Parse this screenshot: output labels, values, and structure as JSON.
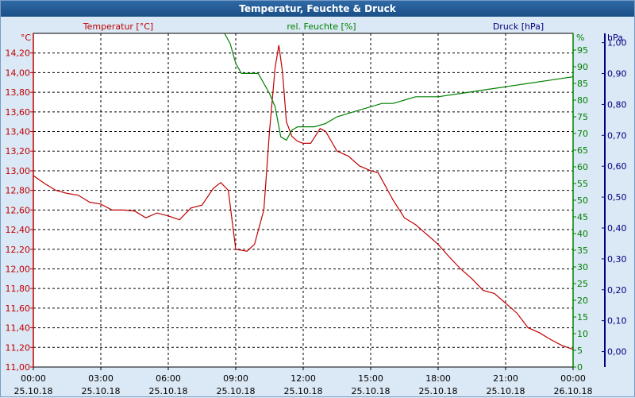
{
  "window": {
    "title": "Temperatur, Feuchte & Druck"
  },
  "chart_data": {
    "type": "line",
    "title": "Temperatur, Feuchte & Druck",
    "grid": true,
    "colors": {
      "temperature": "#c00000",
      "humidity": "#008000",
      "pressure": "#000080"
    },
    "x": {
      "range": [
        "25.10.18 00:00",
        "26.10.18 00:00"
      ],
      "ticks": [
        {
          "time": "00:00",
          "date": "25.10.18"
        },
        {
          "time": "03:00",
          "date": "25.10.18"
        },
        {
          "time": "06:00",
          "date": "25.10.18"
        },
        {
          "time": "09:00",
          "date": "25.10.18"
        },
        {
          "time": "12:00",
          "date": "25.10.18"
        },
        {
          "time": "15:00",
          "date": "25.10.18"
        },
        {
          "time": "18:00",
          "date": "25.10.18"
        },
        {
          "time": "21:00",
          "date": "25.10.18"
        },
        {
          "time": "00:00",
          "date": "26.10.18"
        }
      ]
    },
    "axes": {
      "temperature": {
        "label": "Temperatur [°C]",
        "unit": "°C",
        "ylim": [
          11.0,
          14.4
        ],
        "ticks": [
          "11,00",
          "11,20",
          "11,40",
          "11,60",
          "11,80",
          "12,00",
          "12,20",
          "12,40",
          "12,60",
          "12,80",
          "13,00",
          "13,20",
          "13,40",
          "13,60",
          "13,80",
          "14,00",
          "14,20"
        ]
      },
      "humidity": {
        "label": "rel. Feuchte [%]",
        "unit": "%",
        "ylim": [
          0,
          100
        ],
        "ticks": [
          "0",
          "5",
          "10",
          "15",
          "20",
          "25",
          "30",
          "35",
          "40",
          "45",
          "50",
          "55",
          "60",
          "65",
          "70",
          "75",
          "80",
          "85",
          "90",
          "95"
        ]
      },
      "pressure": {
        "label": "Druck [hPa]",
        "unit": "hPa",
        "ylim": [
          -0.05,
          1.03
        ],
        "ticks": [
          "0,00",
          "0,10",
          "0,20",
          "0,30",
          "0,40",
          "0,50",
          "0,60",
          "0,70",
          "0,80",
          "0,90",
          "1,00"
        ]
      }
    },
    "series": [
      {
        "name": "Temperatur [°C]",
        "color": "#c00000",
        "axis": "temperature",
        "points": [
          [
            "25.10.18 00:00",
            12.95
          ],
          [
            "25.10.18 00:30",
            12.87
          ],
          [
            "25.10.18 01:00",
            12.8
          ],
          [
            "25.10.18 01:30",
            12.77
          ],
          [
            "25.10.18 02:00",
            12.75
          ],
          [
            "25.10.18 02:30",
            12.68
          ],
          [
            "25.10.18 03:00",
            12.66
          ],
          [
            "25.10.18 03:30",
            12.6
          ],
          [
            "25.10.18 04:00",
            12.6
          ],
          [
            "25.10.18 04:30",
            12.59
          ],
          [
            "25.10.18 05:00",
            12.52
          ],
          [
            "25.10.18 05:30",
            12.57
          ],
          [
            "25.10.18 06:00",
            12.54
          ],
          [
            "25.10.18 06:30",
            12.5
          ],
          [
            "25.10.18 07:00",
            12.62
          ],
          [
            "25.10.18 07:30",
            12.65
          ],
          [
            "25.10.18 08:00",
            12.82
          ],
          [
            "25.10.18 08:20",
            12.88
          ],
          [
            "25.10.18 08:40",
            12.8
          ],
          [
            "25.10.18 09:00",
            12.2
          ],
          [
            "25.10.18 09:30",
            12.18
          ],
          [
            "25.10.18 09:50",
            12.25
          ],
          [
            "25.10.18 10:15",
            12.6
          ],
          [
            "25.10.18 10:30",
            13.4
          ],
          [
            "25.10.18 10:45",
            14.05
          ],
          [
            "25.10.18 10:55",
            14.28
          ],
          [
            "25.10.18 11:05",
            14.0
          ],
          [
            "25.10.18 11:15",
            13.5
          ],
          [
            "25.10.18 11:30",
            13.35
          ],
          [
            "25.10.18 11:45",
            13.3
          ],
          [
            "25.10.18 12:00",
            13.28
          ],
          [
            "25.10.18 12:20",
            13.28
          ],
          [
            "25.10.18 12:45",
            13.43
          ],
          [
            "25.10.18 13:00",
            13.4
          ],
          [
            "25.10.18 13:30",
            13.2
          ],
          [
            "25.10.18 14:00",
            13.15
          ],
          [
            "25.10.18 14:30",
            13.05
          ],
          [
            "25.10.18 15:00",
            13.0
          ],
          [
            "25.10.18 15:20",
            12.98
          ],
          [
            "25.10.18 16:00",
            12.7
          ],
          [
            "25.10.18 16:30",
            12.52
          ],
          [
            "25.10.18 17:00",
            12.45
          ],
          [
            "25.10.18 17:30",
            12.35
          ],
          [
            "25.10.18 18:00",
            12.25
          ],
          [
            "25.10.18 18:30",
            12.12
          ],
          [
            "25.10.18 19:00",
            12.0
          ],
          [
            "25.10.18 19:30",
            11.9
          ],
          [
            "25.10.18 20:00",
            11.78
          ],
          [
            "25.10.18 20:30",
            11.75
          ],
          [
            "25.10.18 21:00",
            11.65
          ],
          [
            "25.10.18 21:30",
            11.55
          ],
          [
            "25.10.18 22:00",
            11.4
          ],
          [
            "25.10.18 22:30",
            11.35
          ],
          [
            "25.10.18 23:00",
            11.28
          ],
          [
            "25.10.18 23:30",
            11.22
          ],
          [
            "26.10.18 00:00",
            11.18
          ]
        ]
      },
      {
        "name": "rel. Feuchte [%]",
        "color": "#008000",
        "axis": "humidity",
        "points": [
          [
            "25.10.18 08:30",
            100
          ],
          [
            "25.10.18 08:45",
            97
          ],
          [
            "25.10.18 09:00",
            91
          ],
          [
            "25.10.18 09:15",
            88
          ],
          [
            "25.10.18 09:30",
            88
          ],
          [
            "25.10.18 10:00",
            88
          ],
          [
            "25.10.18 10:30",
            82
          ],
          [
            "25.10.18 10:45",
            78
          ],
          [
            "25.10.18 11:00",
            69
          ],
          [
            "25.10.18 11:15",
            68
          ],
          [
            "25.10.18 11:30",
            71
          ],
          [
            "25.10.18 11:45",
            72
          ],
          [
            "25.10.18 12:00",
            72
          ],
          [
            "25.10.18 12:30",
            72
          ],
          [
            "25.10.18 13:00",
            73
          ],
          [
            "25.10.18 13:30",
            75
          ],
          [
            "25.10.18 14:00",
            76
          ],
          [
            "25.10.18 14:30",
            77
          ],
          [
            "25.10.18 15:00",
            78
          ],
          [
            "25.10.18 15:30",
            79
          ],
          [
            "25.10.18 16:00",
            79
          ],
          [
            "25.10.18 16:30",
            80
          ],
          [
            "25.10.18 17:00",
            81
          ],
          [
            "25.10.18 18:00",
            81
          ],
          [
            "25.10.18 19:00",
            82
          ],
          [
            "25.10.18 20:00",
            83
          ],
          [
            "25.10.18 21:00",
            84
          ],
          [
            "25.10.18 22:00",
            85
          ],
          [
            "25.10.18 23:00",
            86
          ],
          [
            "26.10.18 00:00",
            87
          ]
        ]
      }
    ]
  }
}
